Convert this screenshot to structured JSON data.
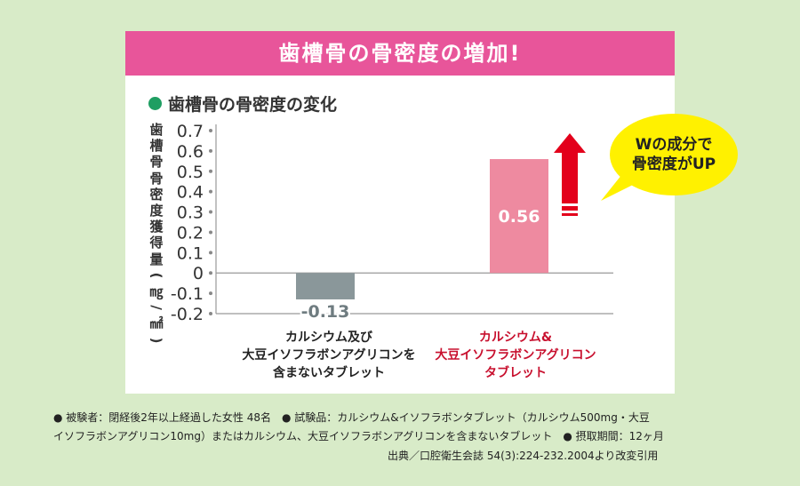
{
  "banner_title": "歯槽骨の骨密度の増加!",
  "chart_title": "歯槽骨の骨密度の変化",
  "callout": {
    "line1": "Wの成分で",
    "line2": "骨密度がUP"
  },
  "colors": {
    "banner": "#e8559a",
    "bar1": "#8a979a",
    "bar2": "#ee8aa0",
    "arrow": "#e3001b",
    "callout": "#fff100"
  },
  "chart_data": {
    "type": "bar",
    "ylabel": "歯槽骨骨密度獲得量(㎎/㎟)",
    "ylim": [
      -0.2,
      0.7
    ],
    "yticks": [
      "0.7",
      "0.6",
      "0.5",
      "0.4",
      "0.3",
      "0.2",
      "0.1",
      "0",
      "-0.1",
      "-0.2"
    ],
    "categories": [
      {
        "lines": [
          "カルシウム及び",
          "大豆イソフラボンアグリコンを",
          "含まないタブレット"
        ]
      },
      {
        "lines": [
          "カルシウム&",
          "大豆イソフラボンアグリコン",
          "タブレット"
        ]
      }
    ],
    "values": [
      -0.13,
      0.56
    ],
    "value_labels": [
      "-0.13",
      "0.56"
    ]
  },
  "footnotes": {
    "line1": "● 被験者：閉経後2年以上経過した女性 48名　● 試験品：カルシウム&イソフラボンタブレット（カルシウム500mg・大豆",
    "line2": "イソフラボンアグリコン10mg）またはカルシウム、大豆イソフラボンアグリコンを含まないタブレット　● 摂取期間：12ヶ月",
    "line3": "出典／口腔衛生会誌 54(3):224-232.2004より改変引用"
  }
}
